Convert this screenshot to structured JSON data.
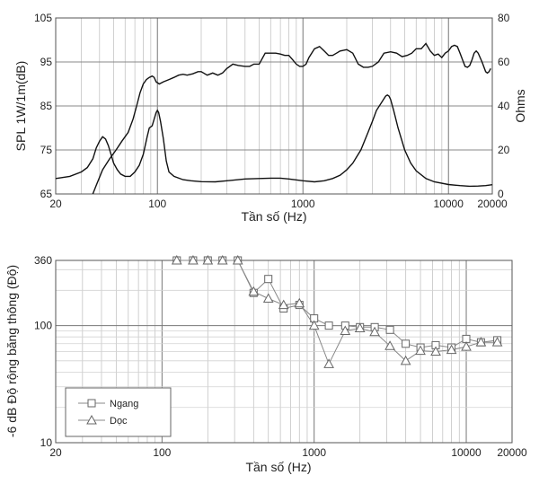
{
  "chart_data": [
    {
      "type": "line",
      "x_scale": "log",
      "xlabel": "Tần số (Hz)",
      "ylabel": "SPL 1W/1m(dB)",
      "y2label": "Ohms",
      "xlim": [
        20,
        20000
      ],
      "ylim": [
        65,
        105
      ],
      "y2lim": [
        0,
        80
      ],
      "x_tick_labels": [
        "20",
        "100",
        "1000",
        "10000",
        "20000"
      ],
      "x_tick_values": [
        20,
        100,
        1000,
        10000,
        20000
      ],
      "y_tick_labels": [
        "65",
        "75",
        "85",
        "95",
        "105"
      ],
      "y2_tick_labels": [
        "0",
        "20",
        "40",
        "60",
        "80"
      ],
      "series": [
        {
          "name": "SPL",
          "axis": "left",
          "x": [
            35,
            38,
            42,
            47,
            52,
            57,
            63,
            68,
            72,
            76,
            80,
            84,
            88,
            92,
            95,
            98,
            103,
            110,
            120,
            130,
            140,
            150,
            160,
            175,
            190,
            200,
            220,
            240,
            260,
            280,
            300,
            330,
            360,
            400,
            430,
            460,
            500,
            550,
            600,
            650,
            700,
            750,
            800,
            850,
            900,
            950,
            1000,
            1050,
            1100,
            1200,
            1300,
            1400,
            1500,
            1600,
            1700,
            1800,
            2000,
            2200,
            2400,
            2600,
            2800,
            3000,
            3300,
            3600,
            4000,
            4400,
            4800,
            5200,
            5600,
            6000,
            6500,
            7000,
            7500,
            8000,
            8500,
            9000,
            9500,
            10000,
            10500,
            11000,
            11500,
            12000,
            12500,
            13000,
            13500,
            14000,
            14500,
            15000,
            15500,
            16000,
            17000,
            18000,
            18500,
            19000,
            19500
          ],
          "y": [
            64,
            67,
            70.5,
            73,
            75,
            77,
            79,
            82,
            85,
            88,
            90,
            91,
            91.5,
            91.8,
            91.5,
            90.5,
            90,
            90.5,
            91,
            91.5,
            92,
            92.2,
            92,
            92.3,
            92.8,
            92.8,
            92,
            92.5,
            92,
            92.5,
            93.5,
            94.5,
            94.2,
            94,
            94,
            94.5,
            94.5,
            97,
            97,
            97,
            96.8,
            96.5,
            96.5,
            95.5,
            94.5,
            94,
            94,
            94.5,
            96,
            98,
            98.5,
            97.5,
            96.5,
            96.5,
            97,
            97.5,
            97.8,
            97,
            94.5,
            93.8,
            93.8,
            94,
            95,
            97,
            97.3,
            97,
            96.2,
            96.5,
            97,
            98,
            98,
            99.2,
            97.5,
            96.5,
            96.8,
            96,
            97,
            97.5,
            98.5,
            98.8,
            98.5,
            97,
            95.5,
            94,
            93.8,
            94.2,
            95.5,
            97,
            97.5,
            97,
            95,
            92.8,
            92.5,
            92.8,
            93.5
          ]
        },
        {
          "name": "Impedance",
          "axis": "right",
          "x": [
            20,
            25,
            30,
            33,
            36,
            38,
            40,
            42,
            44,
            46,
            48,
            50,
            53,
            56,
            60,
            65,
            70,
            75,
            80,
            85,
            88,
            92,
            95,
            98,
            100,
            102,
            105,
            110,
            115,
            120,
            130,
            150,
            170,
            200,
            250,
            300,
            400,
            500,
            600,
            700,
            800,
            1000,
            1200,
            1400,
            1600,
            1800,
            2000,
            2200,
            2500,
            2800,
            3000,
            3200,
            3500,
            3700,
            3800,
            3900,
            4000,
            4200,
            4500,
            5000,
            5500,
            6000,
            7000,
            8000,
            10000,
            12000,
            14000,
            16000,
            18000,
            20000
          ],
          "y": [
            7,
            8,
            10,
            12,
            16,
            21,
            24,
            26,
            25,
            22,
            18,
            14,
            11,
            9,
            8,
            8,
            10,
            13,
            18,
            26,
            30,
            31,
            34,
            37,
            38,
            37,
            33,
            25,
            15,
            10,
            8,
            6.5,
            6,
            5.6,
            5.5,
            6,
            6.8,
            7,
            7.2,
            7.2,
            6.8,
            6,
            5.5,
            6,
            7,
            8.5,
            11,
            14,
            20,
            28,
            33,
            38,
            42,
            44.5,
            45,
            44.5,
            43,
            38,
            30,
            20,
            14,
            10.5,
            7,
            5.5,
            4.3,
            3.8,
            3.5,
            3.6,
            3.8,
            4.2
          ]
        }
      ]
    },
    {
      "type": "line",
      "x_scale": "log",
      "y_scale": "log",
      "xlabel": "Tần số (Hz)",
      "ylabel": "-6 dB Độ rộng băng thông (Độ)",
      "xlim": [
        20,
        20000
      ],
      "ylim": [
        10,
        360
      ],
      "x_tick_labels": [
        "20",
        "100",
        "1000",
        "10000",
        "20000"
      ],
      "x_tick_values": [
        20,
        100,
        1000,
        10000,
        20000
      ],
      "y_tick_labels": [
        "10",
        "100",
        "360"
      ],
      "y_tick_values": [
        10,
        100,
        360
      ],
      "legend_position": "bottom-left",
      "series": [
        {
          "name": "Ngang",
          "marker": "square",
          "x": [
            125,
            160,
            200,
            250,
            315,
            400,
            500,
            630,
            800,
            1000,
            1250,
            1600,
            2000,
            2500,
            3150,
            4000,
            5000,
            6300,
            8000,
            10000,
            12500,
            16000
          ],
          "y": [
            360,
            360,
            360,
            360,
            360,
            190,
            250,
            140,
            150,
            115,
            100,
            100,
            97,
            97,
            92,
            70,
            65,
            68,
            65,
            77,
            72,
            75
          ]
        },
        {
          "name": "Dọc",
          "marker": "triangle",
          "x": [
            125,
            160,
            200,
            250,
            315,
            400,
            500,
            630,
            800,
            1000,
            1250,
            1600,
            2000,
            2500,
            3150,
            4000,
            5000,
            6300,
            8000,
            10000,
            12500,
            16000
          ],
          "y": [
            360,
            360,
            360,
            360,
            360,
            195,
            170,
            150,
            155,
            100,
            47,
            90,
            95,
            88,
            67,
            50,
            61,
            60,
            62,
            66,
            72,
            72
          ]
        }
      ]
    }
  ]
}
